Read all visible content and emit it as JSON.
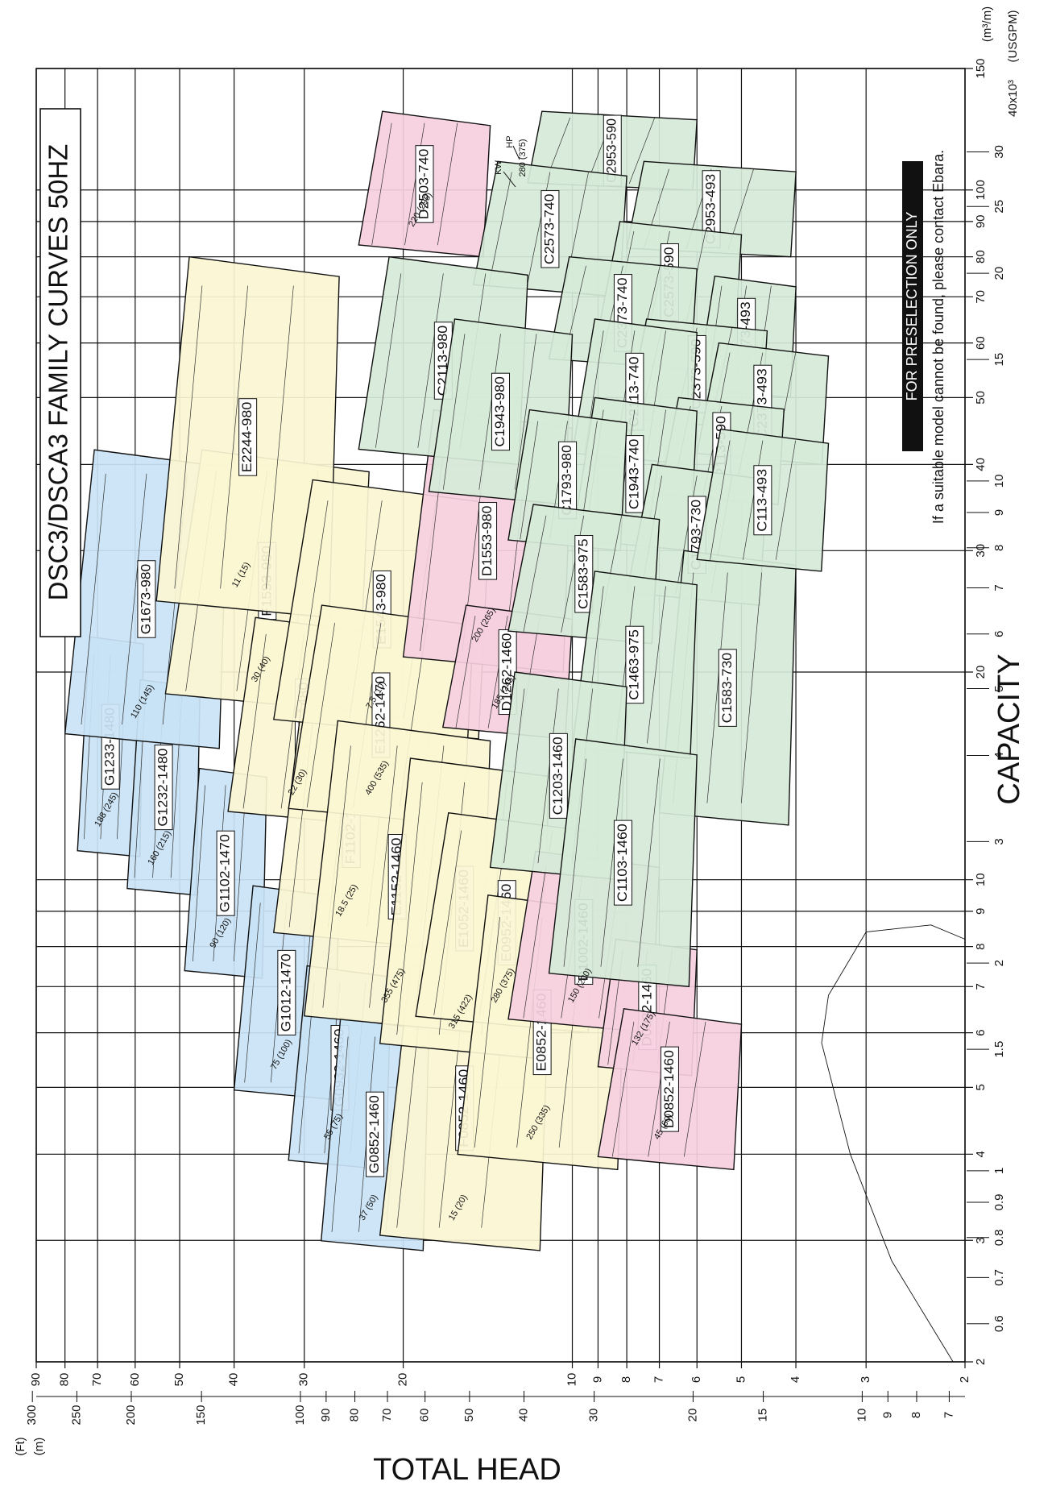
{
  "chart_data": {
    "type": "area",
    "title": "DSC3/DSCA3 FAMILY CURVES 50HZ",
    "xlabel": "CAPACITY",
    "ylabel": "TOTAL HEAD",
    "x_unit_primary": "(m³/m)",
    "x_unit_secondary": "(USGPM)",
    "x_secondary_multiplier": "40x10³",
    "y_unit_primary": "(m)",
    "y_unit_secondary": "(Ft)",
    "x_scale": "log",
    "y_scale": "log",
    "xlim": [
      2,
      150
    ],
    "ylim": [
      2,
      90
    ],
    "x_ticks_primary": [
      2,
      3,
      4,
      5,
      6,
      7,
      8,
      9,
      10,
      20,
      30,
      40,
      50,
      60,
      70,
      80,
      90,
      100,
      150
    ],
    "x_ticks_secondary": [
      0.6,
      0.7,
      0.8,
      0.9,
      1.0,
      1.5,
      2,
      3,
      4,
      5,
      6,
      7,
      8,
      9,
      10,
      15,
      20,
      25,
      30
    ],
    "y_ticks_primary": [
      2,
      3,
      4,
      5,
      6,
      7,
      8,
      9,
      10,
      20,
      30,
      40,
      50,
      60,
      70,
      80,
      90
    ],
    "y_ticks_secondary": [
      7,
      8,
      9,
      10,
      15,
      20,
      30,
      40,
      50,
      60,
      70,
      80,
      90,
      100,
      150,
      200,
      250,
      300
    ],
    "grid": true,
    "annotation_banner": "FOR PRESELECTION ONLY",
    "annotation_note": "If a suitable model cannot be found, please contact Ebara.",
    "legend_kw": "KW",
    "legend_hp": "HP",
    "legend_example": "280 (375)",
    "series": [
      {
        "name": "G1233-1480",
        "family": "G",
        "q": [
          10.8,
          22.5
        ],
        "h": [
          58,
          76
        ]
      },
      {
        "name": "G1232-1480",
        "family": "G",
        "q": [
          9.5,
          19.5
        ],
        "h": [
          46,
          62
        ]
      },
      {
        "name": "G1673-980",
        "family": "G",
        "q": [
          15.5,
          42
        ],
        "h": [
          41,
          80
        ]
      },
      {
        "name": "G1102-1470",
        "family": "G",
        "q": [
          7.2,
          14.5
        ],
        "h": [
          35,
          49
        ]
      },
      {
        "name": "G1012-1470",
        "family": "G",
        "q": [
          4.8,
          9.8
        ],
        "h": [
          26,
          40
        ]
      },
      {
        "name": "G0932-1460",
        "family": "G",
        "q": [
          3.8,
          7.5
        ],
        "h": [
          21,
          32
        ]
      },
      {
        "name": "G0852-1460",
        "family": "G",
        "q": [
          2.9,
          6.3
        ],
        "h": [
          18,
          28
        ]
      },
      {
        "name": "F1593-980",
        "family": "F",
        "q": [
          17.5,
          42
        ],
        "h": [
          23,
          53
        ]
      },
      {
        "name": "F1302-1480",
        "family": "F",
        "q": [
          12,
          24
        ],
        "h": [
          22,
          41
        ]
      },
      {
        "name": "F1102-1470",
        "family": "F",
        "q": [
          8,
          18
        ],
        "h": [
          18,
          34
        ]
      },
      {
        "name": "F0852-1460",
        "family": "F",
        "q": [
          2.9,
          7.5
        ],
        "h": [
          11,
          22
        ]
      },
      {
        "name": "E2244-980",
        "family": "E",
        "q": [
          24,
          80
        ],
        "h": [
          26,
          55
        ]
      },
      {
        "name": "E1543-980",
        "family": "E",
        "q": [
          16,
          38
        ],
        "h": [
          14,
          34
        ]
      },
      {
        "name": "E1262-1470",
        "family": "E",
        "q": [
          12,
          25
        ],
        "h": [
          15,
          32
        ]
      },
      {
        "name": "E1152-1460",
        "family": "E",
        "q": [
          6,
          17
        ],
        "h": [
          14,
          30
        ]
      },
      {
        "name": "E1052-1460",
        "family": "E",
        "q": [
          5.5,
          15
        ],
        "h": [
          11,
          22
        ]
      },
      {
        "name": "E0952-1460",
        "family": "E",
        "q": [
          6,
          12.5
        ],
        "h": [
          9,
          19
        ]
      },
      {
        "name": "E0852-1460",
        "family": "E",
        "q": [
          3.8,
          9.5
        ],
        "h": [
          8,
          16
        ]
      },
      {
        "name": "D2503-740",
        "family": "D",
        "q": [
          80,
          130
        ],
        "h": [
          14,
          24
        ]
      },
      {
        "name": "D1553-980",
        "family": "D",
        "q": [
          20,
          48
        ],
        "h": [
          10,
          20
        ]
      },
      {
        "name": "D1262-1460",
        "family": "D",
        "q": [
          16,
          25
        ],
        "h": [
          10,
          17
        ]
      },
      {
        "name": "D1002-1460",
        "family": "D",
        "q": [
          6,
          11
        ],
        "h": [
          7,
          13
        ]
      },
      {
        "name": "D0922-1460",
        "family": "D",
        "q": [
          5.2,
          8.2
        ],
        "h": [
          6,
          9
        ]
      },
      {
        "name": "D0852-1460",
        "family": "D",
        "q": [
          3.8,
          6.5
        ],
        "h": [
          5,
          9
        ]
      },
      {
        "name": "C2953-590",
        "family": "C",
        "q": [
          100,
          130
        ],
        "h": [
          6,
          12
        ]
      },
      {
        "name": "C2953-493",
        "family": "C",
        "q": [
          80,
          110
        ],
        "h": [
          4,
          8
        ]
      },
      {
        "name": "C2573-740",
        "family": "C",
        "q": [
          70,
          110
        ],
        "h": [
          8,
          15
        ]
      },
      {
        "name": "C2573-590",
        "family": "C",
        "q": [
          60,
          90
        ],
        "h": [
          5,
          9
        ]
      },
      {
        "name": "C2573-493",
        "family": "C",
        "q": [
          50,
          75
        ],
        "h": [
          4,
          6
        ]
      },
      {
        "name": "C2373-740",
        "family": "C",
        "q": [
          55,
          80
        ],
        "h": [
          6,
          11
        ]
      },
      {
        "name": "C2373-590",
        "family": "C",
        "q": [
          45,
          65
        ],
        "h": [
          4.5,
          8
        ]
      },
      {
        "name": "C2373-493",
        "family": "C",
        "q": [
          40,
          60
        ],
        "h": [
          3.5,
          6
        ]
      },
      {
        "name": "C2113-980",
        "family": "C",
        "q": [
          40,
          80
        ],
        "h": [
          12,
          24
        ]
      },
      {
        "name": "C2113-740",
        "family": "C",
        "q": [
          40,
          65
        ],
        "h": [
          6,
          10
        ]
      },
      {
        "name": "C2113-590",
        "family": "C",
        "q": [
          35,
          50
        ],
        "h": [
          4.2,
          7
        ]
      },
      {
        "name": "C1943-980",
        "family": "C",
        "q": [
          35,
          65
        ],
        "h": [
          10,
          18
        ]
      },
      {
        "name": "C1943-740",
        "family": "C",
        "q": [
          30,
          50
        ],
        "h": [
          6,
          10
        ]
      },
      {
        "name": "C1793-980",
        "family": "C",
        "q": [
          30,
          48
        ],
        "h": [
          8,
          13
        ]
      },
      {
        "name": "C1793-730",
        "family": "C",
        "q": [
          25,
          40
        ],
        "h": [
          4.5,
          8
        ]
      },
      {
        "name": "C1583-975",
        "family": "C",
        "q": [
          22,
          35
        ],
        "h": [
          7,
          13
        ]
      },
      {
        "name": "C1583-730",
        "family": "C",
        "q": [
          12,
          30
        ],
        "h": [
          4,
          7
        ]
      },
      {
        "name": "C1463-975",
        "family": "C",
        "q": [
          15,
          28
        ],
        "h": [
          6,
          10
        ]
      },
      {
        "name": "C1203-1460",
        "family": "C",
        "q": [
          10,
          20
        ],
        "h": [
          8,
          14
        ]
      },
      {
        "name": "C1103-1460",
        "family": "C",
        "q": [
          7,
          16
        ],
        "h": [
          6,
          11
        ]
      },
      {
        "name": "C113-493",
        "family": "C",
        "q": [
          28,
          45
        ],
        "h": [
          3.5,
          6
        ]
      }
    ],
    "motor_labels": [
      "188 (245)",
      "160 (215)",
      "110 (145)",
      "90 (120)",
      "75 (100)",
      "55 (75)",
      "37 (50)",
      "30 (40)",
      "22 (30)",
      "18.5 (25)",
      "15 (20)",
      "11 (15)",
      "7.5 (10)",
      "400 (535)",
      "355 (475)",
      "315 (422)",
      "280 (375)",
      "250 (335)",
      "220 (295)",
      "200 (265)",
      "185 (245)",
      "150 (200)",
      "132 (175)",
      "45 (60)"
    ],
    "family_colors": {
      "G": "#c9e3f5",
      "F": "#fbf6d2",
      "E": "#fbf6d2",
      "D": "#f6cfe0",
      "C": "#d6ead8"
    }
  }
}
